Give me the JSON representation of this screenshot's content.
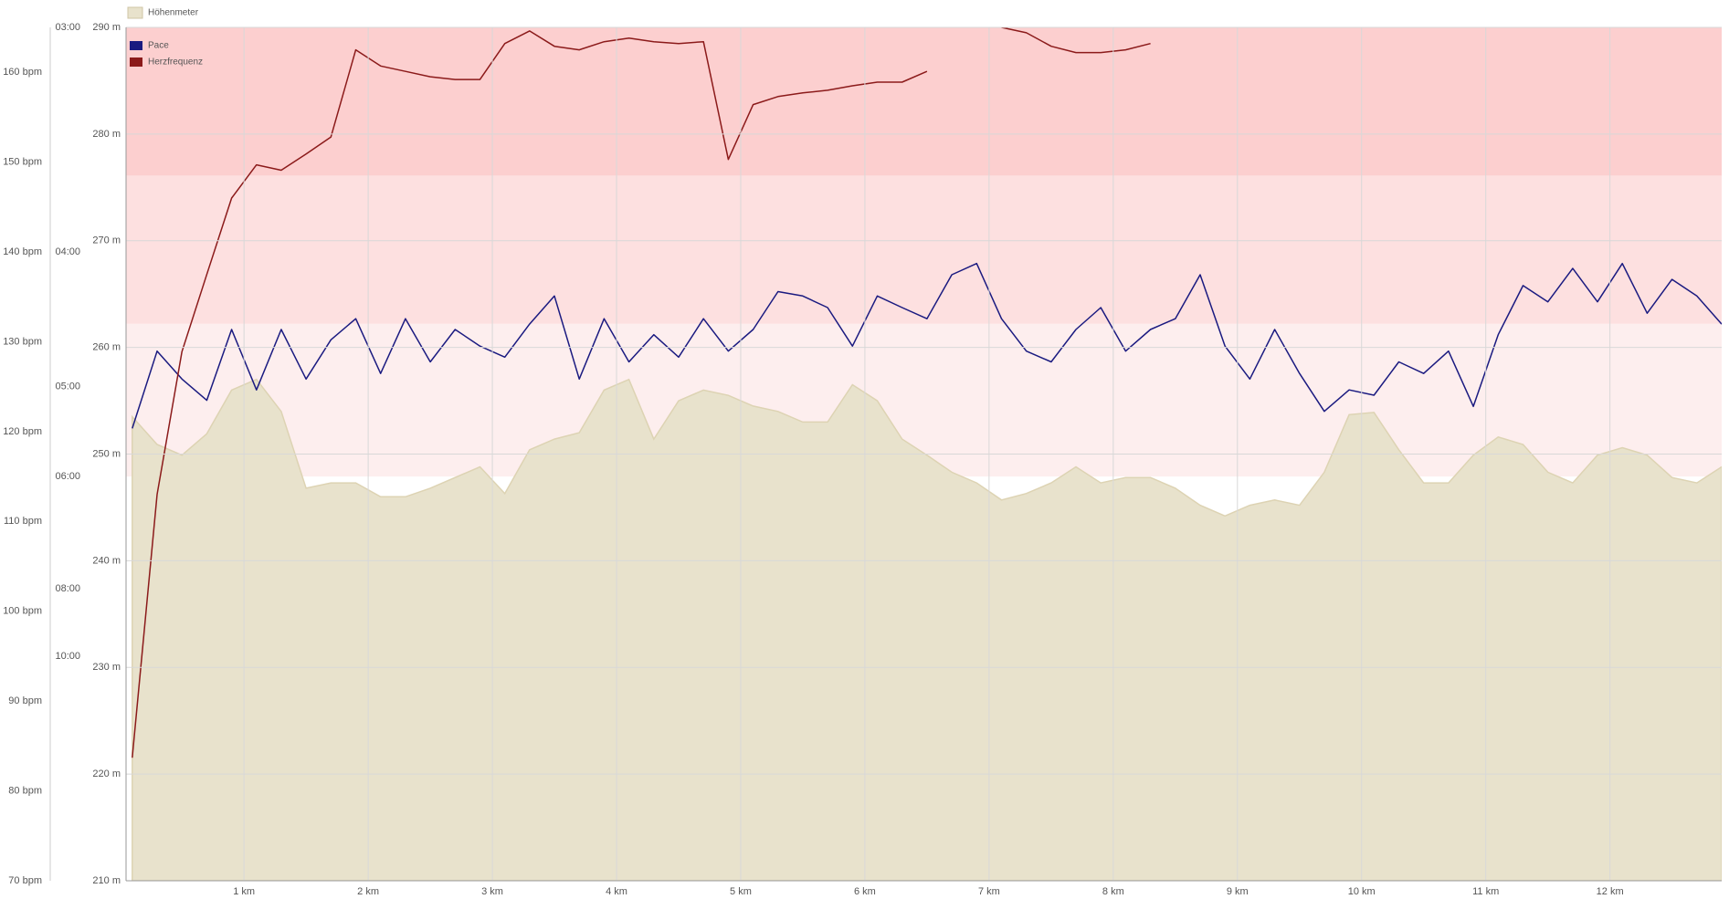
{
  "chart_data": {
    "type": "multi-axis-line",
    "x": [
      0.1,
      0.3,
      0.5,
      0.7,
      0.9,
      1.1,
      1.3,
      1.5,
      1.7,
      1.9,
      2.1,
      2.3,
      2.5,
      2.7,
      2.9,
      3.1,
      3.3,
      3.5,
      3.7,
      3.9,
      4.1,
      4.3,
      4.5,
      4.7,
      4.9,
      5.1,
      5.3,
      5.5,
      5.7,
      5.9,
      6.1,
      6.3,
      6.5,
      6.7,
      6.9,
      7.1,
      7.3,
      7.5,
      7.7,
      7.9,
      8.1,
      8.3,
      8.5,
      8.7,
      8.9,
      9.1,
      9.3,
      9.5,
      9.7,
      9.9,
      10.1,
      10.3,
      10.5,
      10.7,
      10.9,
      11.1,
      11.3,
      11.5,
      11.7,
      11.9,
      12.1,
      12.3,
      12.5,
      12.7,
      12.9
    ],
    "xlim": [
      0.05,
      12.9
    ],
    "xticks": [
      {
        "value": 1,
        "label": "1 km"
      },
      {
        "value": 2,
        "label": "2 km"
      },
      {
        "value": 3,
        "label": "3 km"
      },
      {
        "value": 4,
        "label": "4 km"
      },
      {
        "value": 5,
        "label": "5 km"
      },
      {
        "value": 6,
        "label": "6 km"
      },
      {
        "value": 7,
        "label": "7 km"
      },
      {
        "value": 8,
        "label": "8 km"
      },
      {
        "value": 9,
        "label": "9 km"
      },
      {
        "value": 10,
        "label": "10 km"
      },
      {
        "value": 11,
        "label": "11 km"
      },
      {
        "value": 12,
        "label": "12 km"
      }
    ],
    "ylim": [
      210,
      290
    ],
    "yticks": [
      {
        "value": 210,
        "label": "210 m"
      },
      {
        "value": 220,
        "label": "220 m"
      },
      {
        "value": 230,
        "label": "230 m"
      },
      {
        "value": 240,
        "label": "240 m"
      },
      {
        "value": 250,
        "label": "250 m"
      },
      {
        "value": 260,
        "label": "260 m"
      },
      {
        "value": 270,
        "label": "270 m"
      },
      {
        "value": 280,
        "label": "280 m"
      },
      {
        "value": 290,
        "label": "290 m"
      }
    ],
    "y2lim": [
      70,
      165
    ],
    "y2ticks": [
      {
        "value": 70,
        "label": "70 bpm"
      },
      {
        "value": 80,
        "label": "80 bpm"
      },
      {
        "value": 90,
        "label": "90 bpm"
      },
      {
        "value": 100,
        "label": "100 bpm"
      },
      {
        "value": 110,
        "label": "110 bpm"
      },
      {
        "value": 120,
        "label": "120 bpm"
      },
      {
        "value": 130,
        "label": "130 bpm"
      },
      {
        "value": 140,
        "label": "140 bpm"
      },
      {
        "value": 150,
        "label": "150 bpm"
      },
      {
        "value": 160,
        "label": "160 bpm"
      }
    ],
    "y3lim": [
      3,
      60
    ],
    "y3scale": "reciprocal",
    "y3ticks": [
      {
        "value": 3,
        "label": "03:00"
      },
      {
        "value": 4,
        "label": "04:00"
      },
      {
        "value": 5,
        "label": "05:00"
      },
      {
        "value": 6,
        "label": "06:00"
      },
      {
        "value": 8,
        "label": "08:00"
      },
      {
        "value": 10,
        "label": "10:00"
      }
    ],
    "grid": true,
    "zones": [
      {
        "from": 115,
        "to": 132,
        "color": "#fdeeee"
      },
      {
        "from": 132,
        "to": 148.5,
        "color": "#fde0e0"
      },
      {
        "from": 148.5,
        "to": 165,
        "color": "#fccfcf"
      }
    ],
    "series": [
      {
        "name": "Höhenmeter",
        "color": "#e8e2cc",
        "axis": "y",
        "kind": "area",
        "values": [
          253.5,
          250.9,
          249.9,
          251.9,
          256,
          257,
          254,
          246.8,
          247.3,
          247.3,
          246,
          246,
          246.8,
          247.8,
          248.8,
          246.3,
          250.4,
          251.4,
          252,
          256,
          257,
          251.4,
          255,
          256,
          255.5,
          254.5,
          254,
          253,
          253,
          256.5,
          255,
          251.4,
          249.9,
          248.3,
          247.3,
          245.7,
          246.3,
          247.3,
          248.8,
          247.3,
          247.8,
          247.8,
          246.8,
          245.2,
          244.2,
          245.2,
          245.7,
          245.2,
          248.3,
          253.7,
          253.9,
          250.4,
          247.3,
          247.3,
          249.9,
          251.6,
          250.9,
          248.3,
          247.3,
          249.9,
          250.6,
          249.9,
          247.8,
          247.3,
          248.8
        ]
      },
      {
        "name": "Pace",
        "color": "#1a1a80",
        "axis": "y3",
        "kind": "line",
        "values": [
          5.42,
          4.69,
          4.93,
          5.13,
          4.52,
          5.03,
          4.52,
          4.93,
          4.6,
          4.44,
          4.88,
          4.44,
          4.78,
          4.52,
          4.65,
          4.74,
          4.48,
          4.28,
          4.93,
          4.44,
          4.78,
          4.56,
          4.74,
          4.44,
          4.69,
          4.52,
          4.25,
          4.28,
          4.36,
          4.65,
          4.28,
          4.36,
          4.44,
          4.14,
          4.07,
          4.44,
          4.69,
          4.78,
          4.52,
          4.36,
          4.69,
          4.52,
          4.44,
          4.14,
          4.65,
          4.93,
          4.52,
          4.88,
          5.24,
          5.03,
          5.08,
          4.78,
          4.88,
          4.69,
          5.19,
          4.56,
          4.21,
          4.32,
          4.1,
          4.32,
          4.07,
          4.4,
          4.17,
          4.28,
          4.48
        ]
      },
      {
        "name": "Herzfrequenz",
        "color": "#8b1a1a",
        "axis": "y2",
        "kind": "line",
        "values": [
          83.7,
          113,
          128.9,
          137.5,
          146,
          149.7,
          149.1,
          150.9,
          152.8,
          162.5,
          160.7,
          160.1,
          159.5,
          159.2,
          159.2,
          163.2,
          164.6,
          162.9,
          162.5,
          163.4,
          163.8,
          163.4,
          163.2,
          163.4,
          150.3,
          156.4,
          157.3,
          157.7,
          158,
          158.5,
          158.9,
          158.9,
          160.1,
          null,
          null,
          165,
          164.4,
          162.9,
          162.2,
          162.2,
          162.5,
          163.2,
          null,
          null,
          null,
          null,
          null,
          null,
          null,
          null,
          null,
          null,
          null,
          null,
          null,
          null,
          null,
          null,
          null,
          null,
          null,
          null,
          null,
          null,
          null
        ]
      }
    ]
  }
}
